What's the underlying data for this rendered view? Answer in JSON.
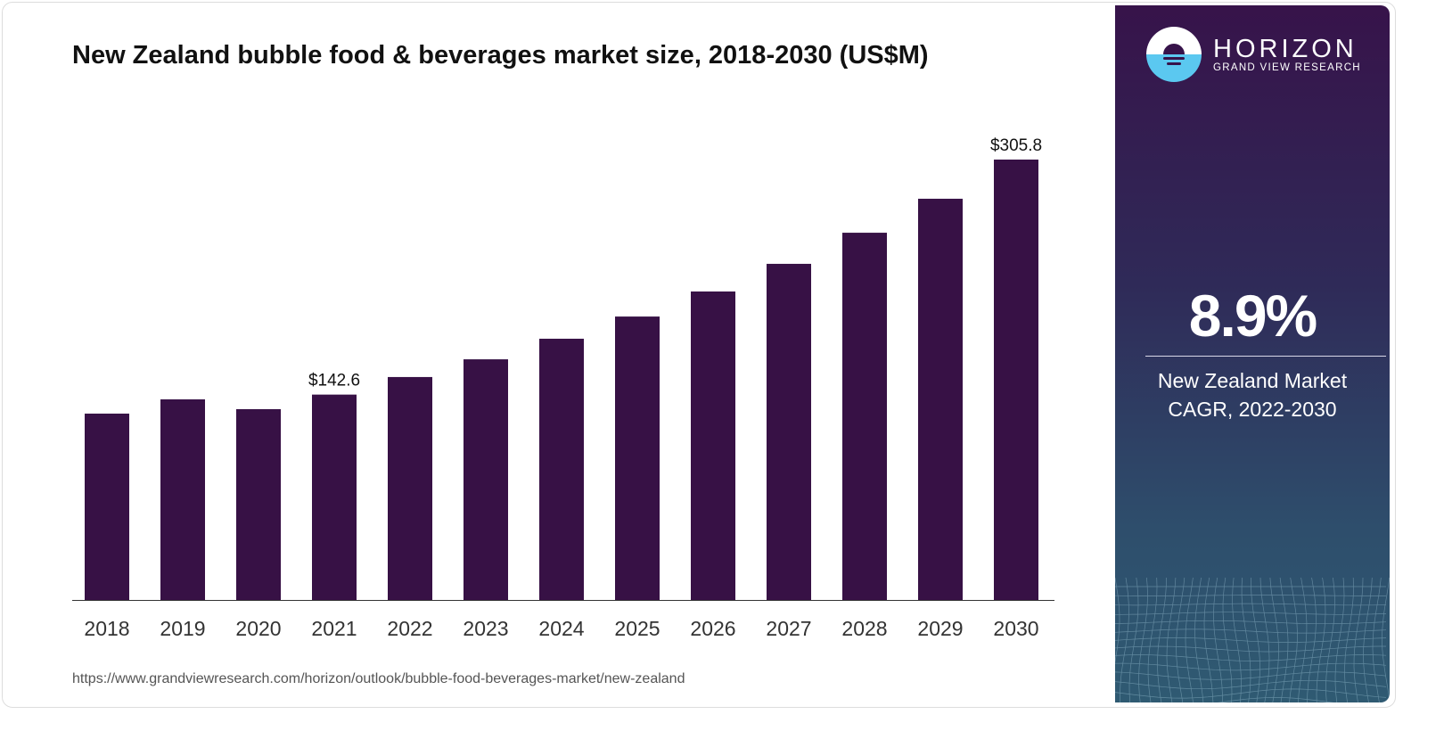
{
  "title": "New Zealand bubble food & beverages market size, 2018-2030 (US$M)",
  "source": "https://www.grandviewresearch.com/horizon/outlook/bubble-food-beverages-market/new-zealand",
  "brand": {
    "name": "HORIZON",
    "subtitle": "GRAND VIEW RESEARCH"
  },
  "cagr": {
    "value": "8.9%",
    "label_line1": "New Zealand Market",
    "label_line2": "CAGR, 2022-2030"
  },
  "colors": {
    "bar": "#371145",
    "axis": "#333333"
  },
  "chart_data": {
    "type": "bar",
    "title": "New Zealand bubble food & beverages market size, 2018-2030 (US$M)",
    "xlabel": "",
    "ylabel": "US$M",
    "categories": [
      "2018",
      "2019",
      "2020",
      "2021",
      "2022",
      "2023",
      "2024",
      "2025",
      "2026",
      "2027",
      "2028",
      "2029",
      "2030"
    ],
    "values": [
      129.4,
      139.3,
      132.5,
      142.6,
      154.8,
      167.1,
      181.4,
      196.8,
      214.2,
      233.4,
      255.0,
      278.6,
      305.8
    ],
    "data_labels": {
      "3": "$142.6",
      "12": "$305.8"
    },
    "ylim": [
      0,
      305.8
    ],
    "grid": false
  }
}
